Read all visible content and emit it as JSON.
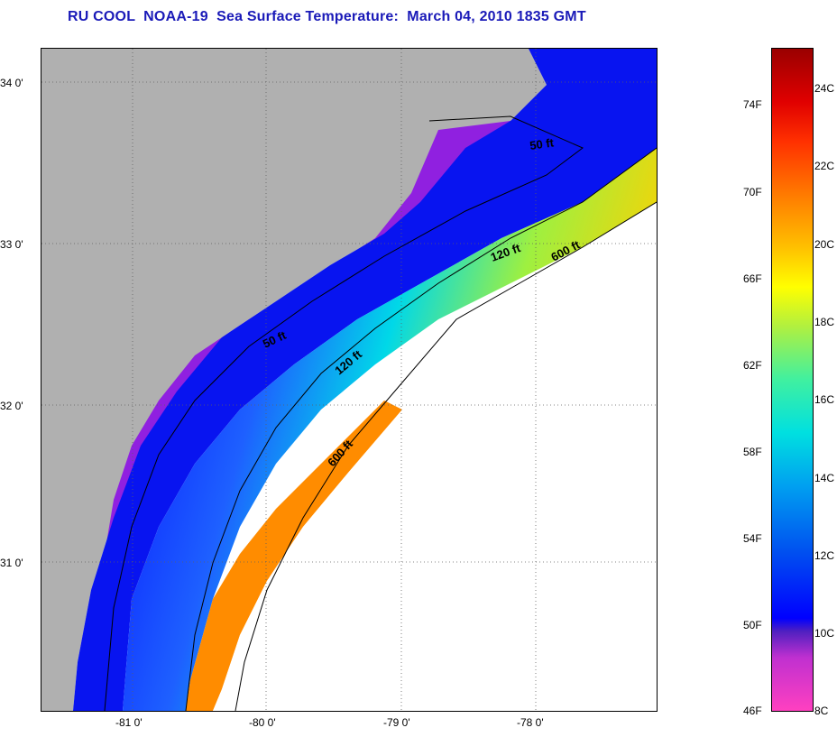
{
  "title": "RU COOL  NOAA-19  Sea Surface Temperature:  March 04, 2010 1835 GMT",
  "map": {
    "lat_labels": [
      "34 0'",
      "33 0'",
      "32 0'",
      "31 0'"
    ],
    "lon_labels": [
      "-81 0'",
      "-80 0'",
      "-79 0'",
      "-78 0'"
    ],
    "contours": [
      {
        "label": "50 ft"
      },
      {
        "label": "50 ft"
      },
      {
        "label": "120 ft"
      },
      {
        "label": "120 ft"
      },
      {
        "label": "600 ft"
      },
      {
        "label": "600 ft"
      }
    ]
  },
  "colorbar": {
    "f_labels": [
      "74F",
      "70F",
      "66F",
      "62F",
      "58F",
      "54F",
      "50F",
      "46F"
    ],
    "c_labels": [
      "24C",
      "22C",
      "20C",
      "18C",
      "16C",
      "14C",
      "12C",
      "10C",
      "8C"
    ]
  },
  "colors": {
    "title": "#1a1ab8",
    "land": "#b0b0b0",
    "no_data": "#ffffff"
  }
}
